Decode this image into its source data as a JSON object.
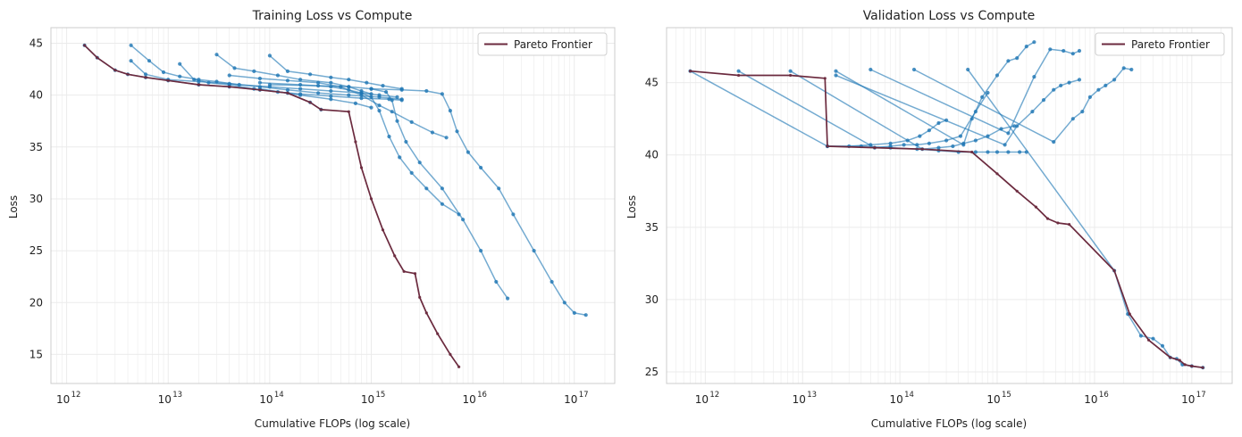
{
  "figure": {
    "background": "#ffffff"
  },
  "colors": {
    "runs": "#1f77b4",
    "frontier": "#6b2a3e",
    "grid": "#ebebeb",
    "axes": "#cccccc"
  },
  "chart_data": [
    {
      "type": "line",
      "title": "Training Loss vs Compute",
      "xlabel": "Cumulative FLOPs (log scale)",
      "ylabel": "Loss",
      "xscale": "log",
      "xlim": [
        700000000000.0,
        2.5e+17
      ],
      "ylim": [
        12.2,
        46.5
      ],
      "xticks": [
        1000000000000.0,
        10000000000000.0,
        100000000000000.0,
        1000000000000000.0,
        1e+16,
        1e+17
      ],
      "xticklabels": [
        "12",
        "13",
        "14",
        "15",
        "16",
        "17"
      ],
      "xtick_base": "10",
      "yticks": [
        15,
        20,
        25,
        30,
        35,
        40,
        45
      ],
      "grid": true,
      "legend": {
        "position": "upper right",
        "entries": [
          "Pareto Frontier"
        ]
      },
      "series": [
        {
          "kind": "run",
          "x": [
            1500000000000.0,
            2000000000000.0,
            3000000000000.0,
            4000000000000.0,
            6000000000000.0,
            10000000000000.0,
            20000000000000.0,
            40000000000000.0,
            80000000000000.0,
            150000000000000.0,
            250000000000000.0,
            320000000000000.0
          ],
          "y": [
            44.8,
            43.6,
            42.4,
            42.0,
            41.7,
            41.4,
            41.0,
            40.8,
            40.5,
            40.2,
            39.3,
            38.6
          ]
        },
        {
          "kind": "run",
          "x": [
            4300000000000.0,
            6500000000000.0,
            9000000000000.0,
            13000000000000.0,
            20000000000000.0,
            30000000000000.0,
            50000000000000.0,
            100000000000000.0,
            200000000000000.0,
            400000000000000.0,
            800000000000000.0,
            1200000000000000.0,
            1800000000000000.0
          ],
          "y": [
            44.8,
            43.3,
            42.2,
            41.8,
            41.5,
            41.3,
            41.0,
            40.8,
            40.6,
            40.4,
            40.2,
            40.0,
            39.8
          ]
        },
        {
          "kind": "run",
          "x": [
            4300000000000.0,
            6000000000000.0,
            10000000000000.0,
            20000000000000.0,
            40000000000000.0,
            80000000000000.0,
            150000000000000.0,
            300000000000000.0,
            600000000000000.0,
            1200000000000000.0,
            2000000000000000.0
          ],
          "y": [
            43.3,
            42.0,
            41.5,
            41.3,
            41.1,
            40.8,
            40.5,
            40.2,
            40.0,
            39.8,
            39.6
          ]
        },
        {
          "kind": "run",
          "x": [
            13000000000000.0,
            18000000000000.0,
            25000000000000.0,
            40000000000000.0,
            70000000000000.0,
            120000000000000.0,
            200000000000000.0,
            400000000000000.0,
            800000000000000.0,
            1500000000000000.0,
            2000000000000000.0
          ],
          "y": [
            43.0,
            41.5,
            41.2,
            41.0,
            40.6,
            40.3,
            40.1,
            39.9,
            39.7,
            39.6,
            39.5
          ]
        },
        {
          "kind": "run",
          "x": [
            30000000000000.0,
            45000000000000.0,
            70000000000000.0,
            120000000000000.0,
            200000000000000.0,
            400000000000000.0,
            600000000000000.0,
            800000000000000.0,
            1000000000000000.0
          ],
          "y": [
            43.9,
            42.6,
            42.3,
            41.9,
            41.5,
            41.2,
            40.8,
            40.4,
            40.1
          ]
        },
        {
          "kind": "run",
          "x": [
            100000000000000.0,
            150000000000000.0,
            250000000000000.0,
            400000000000000.0,
            600000000000000.0,
            900000000000000.0,
            1300000000000000.0,
            2000000000000000.0
          ],
          "y": [
            43.8,
            42.3,
            42.0,
            41.7,
            41.5,
            41.2,
            40.9,
            40.6
          ]
        },
        {
          "kind": "run",
          "x": [
            40000000000000.0,
            80000000000000.0,
            150000000000000.0,
            300000000000000.0,
            500000000000000.0,
            800000000000000.0,
            1200000000000000.0,
            1600000000000000.0,
            2500000000000000.0,
            4000000000000000.0,
            5500000000000000.0
          ],
          "y": [
            41.9,
            41.6,
            41.4,
            41.2,
            40.8,
            40.0,
            39.0,
            38.4,
            37.4,
            36.4,
            35.9
          ]
        },
        {
          "kind": "run",
          "x": [
            80000000000000.0,
            200000000000000.0,
            400000000000000.0,
            700000000000000.0,
            1000000000000000.0
          ],
          "y": [
            40.6,
            40.0,
            39.6,
            39.2,
            38.8
          ]
        },
        {
          "kind": "run",
          "x": [
            80000000000000.0,
            200000000000000.0,
            400000000000000.0,
            600000000000000.0,
            800000000000000.0,
            1000000000000000.0,
            1200000000000000.0,
            1500000000000000.0,
            1900000000000000.0,
            2500000000000000.0,
            3500000000000000.0,
            5000000000000000.0,
            7300000000000000.0
          ],
          "y": [
            41.2,
            41.0,
            40.8,
            40.5,
            40.2,
            39.8,
            38.5,
            36.0,
            34.0,
            32.5,
            31.0,
            29.5,
            28.5
          ]
        },
        {
          "kind": "run",
          "x": [
            100000000000000.0,
            300000000000000.0,
            600000000000000.0,
            1000000000000000.0,
            1400000000000000.0,
            1600000000000000.0,
            1800000000000000.0,
            2200000000000000.0,
            3000000000000000.0,
            5000000000000000.0,
            8000000000000000.0,
            1.2e+16,
            1.7e+16,
            2.2e+16
          ],
          "y": [
            41.0,
            40.9,
            40.8,
            40.6,
            40.3,
            39.5,
            37.5,
            35.5,
            33.5,
            31.0,
            28.0,
            25.0,
            22.0,
            20.4
          ]
        },
        {
          "kind": "run",
          "x": [
            1000000000000000.0,
            2000000000000000.0,
            3500000000000000.0,
            5000000000000000.0,
            6000000000000000.0,
            7000000000000000.0,
            9000000000000000.0,
            1.2e+16,
            1.8e+16,
            2.5e+16,
            4e+16,
            6e+16,
            8e+16,
            1e+17,
            1.3e+17
          ],
          "y": [
            40.6,
            40.5,
            40.4,
            40.1,
            38.5,
            36.5,
            34.5,
            33.0,
            31.0,
            28.5,
            25.0,
            22.0,
            20.0,
            19.0,
            18.8
          ]
        },
        {
          "kind": "frontier",
          "name": "Pareto Frontier",
          "x": [
            1500000000000.0,
            2000000000000.0,
            3000000000000.0,
            4000000000000.0,
            6000000000000.0,
            10000000000000.0,
            20000000000000.0,
            40000000000000.0,
            80000000000000.0,
            150000000000000.0,
            250000000000000.0,
            320000000000000.0,
            600000000000000.0,
            700000000000000.0,
            800000000000000.0,
            1000000000000000.0,
            1300000000000000.0,
            1700000000000000.0,
            2100000000000000.0,
            2700000000000000.0,
            3000000000000000.0,
            3500000000000000.0,
            4500000000000000.0,
            6000000000000000.0,
            7300000000000000.0
          ],
          "y": [
            44.8,
            43.6,
            42.4,
            42.0,
            41.7,
            41.4,
            41.0,
            40.8,
            40.5,
            40.2,
            39.3,
            38.6,
            38.4,
            35.5,
            33.0,
            30.0,
            27.0,
            24.5,
            23.0,
            22.8,
            20.5,
            19.0,
            17.0,
            15.0,
            13.8
          ]
        }
      ]
    },
    {
      "type": "line",
      "title": "Validation Loss vs Compute",
      "xlabel": "Cumulative FLOPs (log scale)",
      "ylabel": "Loss",
      "xscale": "log",
      "xlim": [
        400000000000.0,
        2.6e+17
      ],
      "ylim": [
        24.2,
        48.8
      ],
      "xticks": [
        1000000000000.0,
        10000000000000.0,
        100000000000000.0,
        1000000000000000.0,
        1e+16,
        1e+17
      ],
      "xticklabels": [
        "12",
        "13",
        "14",
        "15",
        "16",
        "17"
      ],
      "xtick_base": "10",
      "yticks": [
        25,
        30,
        35,
        40,
        45
      ],
      "grid": true,
      "legend": {
        "position": "upper right",
        "entries": [
          "Pareto Frontier"
        ]
      },
      "series": [
        {
          "kind": "run",
          "x": [
            700000000000.0,
            18000000000000.0,
            30000000000000.0,
            50000000000000.0,
            80000000000000.0,
            120000000000000.0,
            160000000000000.0,
            200000000000000.0,
            250000000000000.0,
            300000000000000.0
          ],
          "y": [
            45.8,
            40.6,
            40.6,
            40.7,
            40.8,
            41.0,
            41.3,
            41.7,
            42.2,
            42.4
          ]
        },
        {
          "kind": "run",
          "x": [
            2200000000000.0,
            55000000000000.0,
            80000000000000.0,
            110000000000000.0,
            150000000000000.0,
            200000000000000.0,
            300000000000000.0,
            420000000000000.0,
            600000000000000.0,
            800000000000000.0
          ],
          "y": [
            45.8,
            40.5,
            40.6,
            40.7,
            40.7,
            40.8,
            41.0,
            41.3,
            43.0,
            44.3
          ]
        },
        {
          "kind": "run",
          "x": [
            7500000000000.0,
            170000000000000.0,
            250000000000000.0,
            350000000000000.0,
            450000000000000.0,
            600000000000000.0,
            800000000000000.0,
            1100000000000000.0,
            1500000000000000.0
          ],
          "y": [
            45.8,
            40.4,
            40.5,
            40.6,
            40.8,
            41.0,
            41.3,
            41.8,
            42.0
          ]
        },
        {
          "kind": "run",
          "x": [
            22000000000000.0,
            450000000000000.0,
            550000000000000.0,
            700000000000000.0,
            1000000000000000.0,
            1300000000000000.0,
            1600000000000000.0,
            2000000000000000.0,
            2400000000000000.0
          ],
          "y": [
            45.8,
            40.7,
            42.5,
            44.0,
            45.5,
            46.5,
            46.7,
            47.5,
            47.8
          ]
        },
        {
          "kind": "run",
          "x": [
            22000000000000.0,
            1200000000000000.0,
            1600000000000000.0,
            2300000000000000.0,
            3000000000000000.0,
            3800000000000000.0,
            4500000000000000.0,
            5500000000000000.0,
            7000000000000000.0
          ],
          "y": [
            45.5,
            40.7,
            42.0,
            43.0,
            43.8,
            44.5,
            44.8,
            45.0,
            45.2
          ]
        },
        {
          "kind": "run",
          "x": [
            50000000000000.0,
            1300000000000000.0,
            2400000000000000.0,
            3500000000000000.0,
            4800000000000000.0,
            6000000000000000.0,
            7000000000000000.0
          ],
          "y": [
            45.9,
            41.5,
            45.4,
            47.3,
            47.2,
            47.0,
            47.2
          ]
        },
        {
          "kind": "run",
          "x": [
            140000000000000.0,
            3800000000000000.0,
            6000000000000000.0,
            7500000000000000.0,
            9000000000000000.0,
            1.1e+16,
            1.3e+16,
            1.6e+16,
            2e+16,
            2.4e+16
          ],
          "y": [
            45.9,
            40.9,
            42.5,
            43.0,
            44.0,
            44.5,
            44.8,
            45.2,
            46.0,
            45.9
          ]
        },
        {
          "kind": "run",
          "x": [
            500000000000000.0,
            1.6e+16,
            2.2e+16,
            3e+16,
            4e+16,
            5e+16,
            6e+16,
            7e+16,
            8e+16,
            1e+17,
            1.3e+17
          ],
          "y": [
            45.9,
            32.0,
            29.0,
            27.5,
            27.3,
            26.8,
            26.0,
            25.9,
            25.5,
            25.4,
            25.3
          ]
        },
        {
          "kind": "run",
          "x": [
            18000000000000.0,
            40000000000000.0,
            80000000000000.0,
            150000000000000.0,
            250000000000000.0,
            400000000000000.0,
            600000000000000.0,
            800000000000000.0,
            1000000000000000.0,
            1300000000000000.0,
            1700000000000000.0,
            2000000000000000.0
          ],
          "y": [
            40.6,
            40.6,
            40.5,
            40.4,
            40.3,
            40.2,
            40.2,
            40.2,
            40.2,
            40.2,
            40.2,
            40.2
          ]
        },
        {
          "kind": "frontier",
          "name": "Pareto Frontier",
          "x": [
            700000000000.0,
            2200000000000.0,
            7500000000000.0,
            17000000000000.0,
            18000000000000.0,
            55000000000000.0,
            170000000000000.0,
            550000000000000.0,
            1000000000000000.0,
            1600000000000000.0,
            2500000000000000.0,
            3300000000000000.0,
            4200000000000000.0,
            5500000000000000.0,
            1.6e+16,
            2.3e+16,
            3.6e+16,
            6e+16,
            7.5e+16,
            8.5e+16,
            1e+17,
            1.3e+17
          ],
          "y": [
            45.8,
            45.5,
            45.5,
            45.3,
            40.6,
            40.5,
            40.4,
            40.2,
            38.7,
            37.5,
            36.4,
            35.6,
            35.3,
            35.2,
            32.0,
            29.0,
            27.2,
            26.0,
            25.8,
            25.5,
            25.4,
            25.3
          ]
        }
      ]
    }
  ]
}
